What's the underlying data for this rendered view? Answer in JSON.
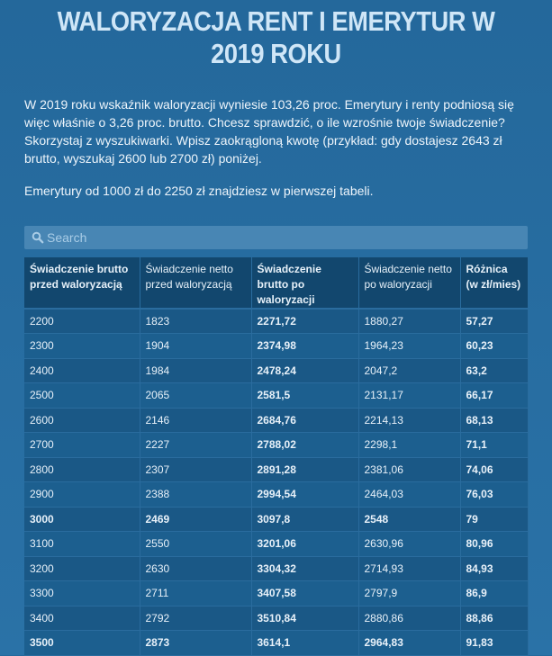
{
  "page": {
    "title": "WALORYZACJA RENT I EMERYTUR W 2019 ROKU",
    "intro": "W 2019 roku wskaźnik waloryzacji wyniesie 103,26 proc. Emerytury i renty podniosą się więc właśnie o 3,26 proc. brutto. Chcesz sprawdzić, o ile wzrośnie twoje świadczenie? Skorzystaj z wyszukiwarki. Wpisz zaokrągloną kwotę (przykład: gdy dostajesz 2643 zł brutto, wyszukaj 2600 lub 2700 zł) poniżej.",
    "intro2": "Emerytury od 1000 zł do 2250 zł znajdziesz w pierwszej tabeli."
  },
  "search": {
    "placeholder": "Search",
    "value": "",
    "icon": "search-icon"
  },
  "table": {
    "headers": [
      "Świadczenie brutto przed waloryzacją",
      "Świadczenie netto przed waloryzacją",
      "Świadczenie brutto po waloryzacji",
      "Świadczenie netto po waloryzacji",
      "Różnica (w zł/mies)"
    ],
    "rows": [
      [
        "2200",
        "1823",
        "2271,72",
        "1880,27",
        "57,27"
      ],
      [
        "2300",
        "1904",
        "2374,98",
        "1964,23",
        "60,23"
      ],
      [
        "2400",
        "1984",
        "2478,24",
        "2047,2",
        "63,2"
      ],
      [
        "2500",
        "2065",
        "2581,5",
        "2131,17",
        "66,17"
      ],
      [
        "2600",
        "2146",
        "2684,76",
        "2214,13",
        "68,13"
      ],
      [
        "2700",
        "2227",
        "2788,02",
        "2298,1",
        "71,1"
      ],
      [
        "2800",
        "2307",
        "2891,28",
        "2381,06",
        "74,06"
      ],
      [
        "2900",
        "2388",
        "2994,54",
        "2464,03",
        "76,03"
      ],
      [
        "3000",
        "2469",
        "3097,8",
        "2548",
        "79"
      ],
      [
        "3100",
        "2550",
        "3201,06",
        "2630,96",
        "80,96"
      ],
      [
        "3200",
        "2630",
        "3304,32",
        "2714,93",
        "84,93"
      ],
      [
        "3300",
        "2711",
        "3407,58",
        "2797,9",
        "86,9"
      ],
      [
        "3400",
        "2792",
        "3510,84",
        "2880,86",
        "88,86"
      ],
      [
        "3500",
        "2873",
        "3614,1",
        "2964,83",
        "91,83"
      ]
    ],
    "bold_rows": [
      8,
      13
    ]
  },
  "colors": {
    "background": "#246a9d",
    "title": "#cfe6f7",
    "header_bg": "#12476e",
    "row_bg": "#1a5886",
    "search_bg": "#4886b4"
  }
}
